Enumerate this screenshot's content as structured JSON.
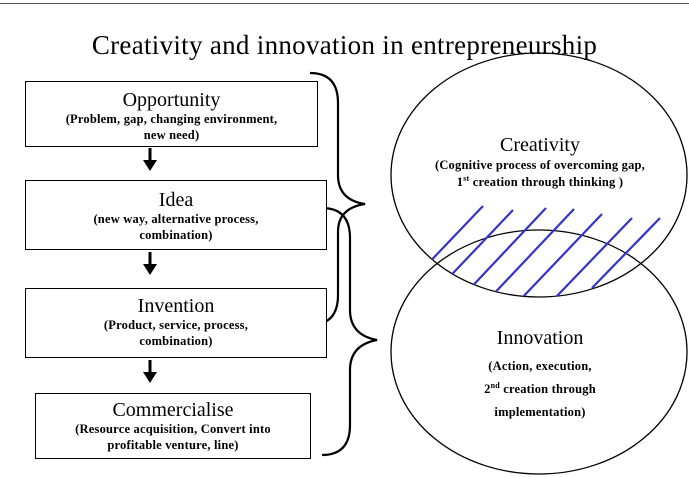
{
  "title": "Creativity and innovation in entrepreneurship",
  "steps": [
    {
      "head": "Opportunity",
      "sub1": "(Problem, gap, changing environment,",
      "sub2": "new need)"
    },
    {
      "head": "Idea",
      "sub1": "(new way, alternative process,",
      "sub2": "combination)"
    },
    {
      "head": "Invention",
      "sub1": "(Product, service, process,",
      "sub2": "combination)"
    },
    {
      "head": "Commercialise",
      "sub1": "(Resource acquisition, Convert into",
      "sub2": "profitable venture, line)"
    }
  ],
  "creativity": {
    "head": "Creativity",
    "sub1": "(Cognitive process of overcoming gap,",
    "sub2_num": "1",
    "sub2_sup": "st",
    "sub2_rest": " creation through thinking )"
  },
  "innovation": {
    "head": "Innovation",
    "sub1": "(Action, execution,",
    "sub2_num": "2",
    "sub2_sup": "nd",
    "sub2_rest": " creation through",
    "sub3": "implementation)"
  },
  "colors": {
    "hatch": "#3333cc",
    "line": "#000000"
  }
}
